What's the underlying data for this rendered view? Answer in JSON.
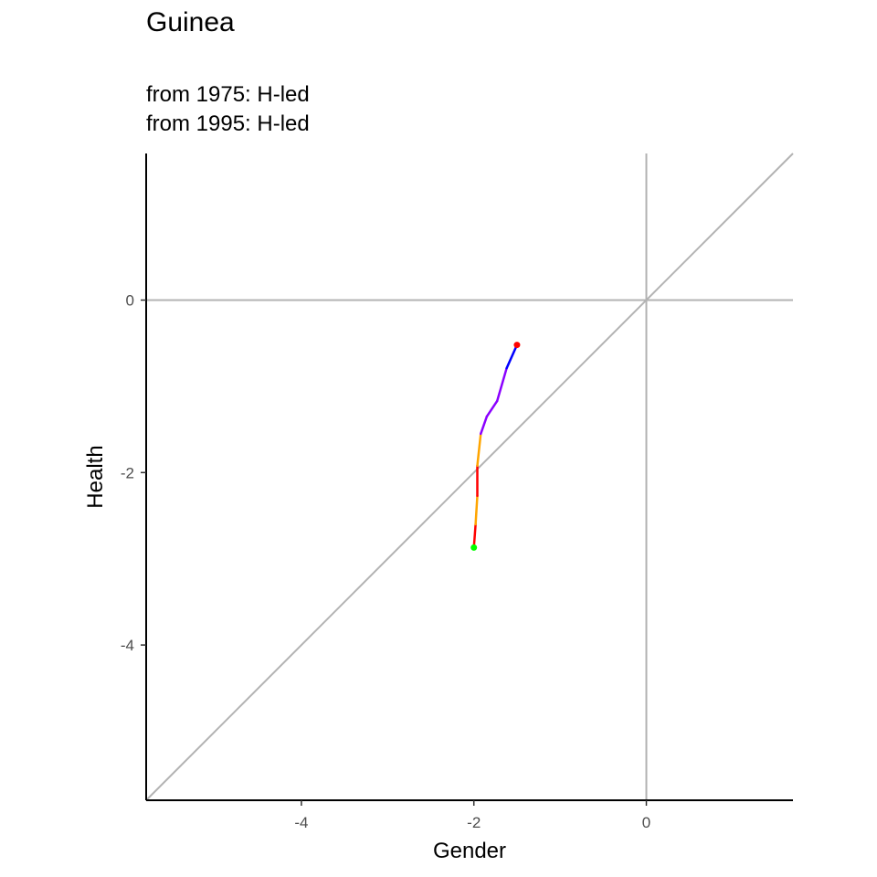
{
  "chart_data": {
    "type": "line",
    "title": "Guinea",
    "subtitle_lines": [
      "from 1975:  H-led",
      "from 1995:  H-led"
    ],
    "xlabel": "Gender",
    "ylabel": "Health",
    "xlim": [
      -5.8,
      1.7
    ],
    "ylim": [
      -5.8,
      1.7
    ],
    "x_ticks": [
      -4,
      -2,
      0
    ],
    "y_ticks": [
      0,
      -2,
      -4
    ],
    "x_tick_labels": [
      "-4",
      "-2",
      "0"
    ],
    "y_tick_labels": [
      "0",
      "-2",
      "-4"
    ],
    "grid": false,
    "reference_lines": {
      "vertical_x": 0,
      "horizontal_y": 0,
      "diagonal": "y = x",
      "color": "#b3b3b3"
    },
    "series": [
      {
        "segments": [
          {
            "x": [
              -2.0,
              -1.98
            ],
            "y": [
              -2.87,
              -2.6
            ],
            "color": "#ff0000"
          },
          {
            "x": [
              -1.98,
              -1.96
            ],
            "y": [
              -2.6,
              -2.27
            ],
            "color": "#ffa500"
          },
          {
            "x": [
              -1.96,
              -1.96
            ],
            "y": [
              -2.27,
              -1.92
            ],
            "color": "#ff0000"
          },
          {
            "x": [
              -1.96,
              -1.92
            ],
            "y": [
              -1.92,
              -1.55
            ],
            "color": "#ffa500"
          },
          {
            "x": [
              -1.92,
              -1.85
            ],
            "y": [
              -1.55,
              -1.35
            ],
            "color": "#8b00ff"
          },
          {
            "x": [
              -1.85,
              -1.73
            ],
            "y": [
              -1.35,
              -1.17
            ],
            "color": "#8b00ff"
          },
          {
            "x": [
              -1.73,
              -1.62
            ],
            "y": [
              -1.17,
              -0.79
            ],
            "color": "#8b00ff"
          },
          {
            "x": [
              -1.62,
              -1.5
            ],
            "y": [
              -0.79,
              -0.52
            ],
            "color": "#0000ff"
          }
        ],
        "start_point": {
          "x": -2.0,
          "y": -2.87,
          "color": "#00ff00"
        },
        "end_point": {
          "x": -1.5,
          "y": -0.52,
          "color": "#ff0000"
        }
      }
    ]
  }
}
